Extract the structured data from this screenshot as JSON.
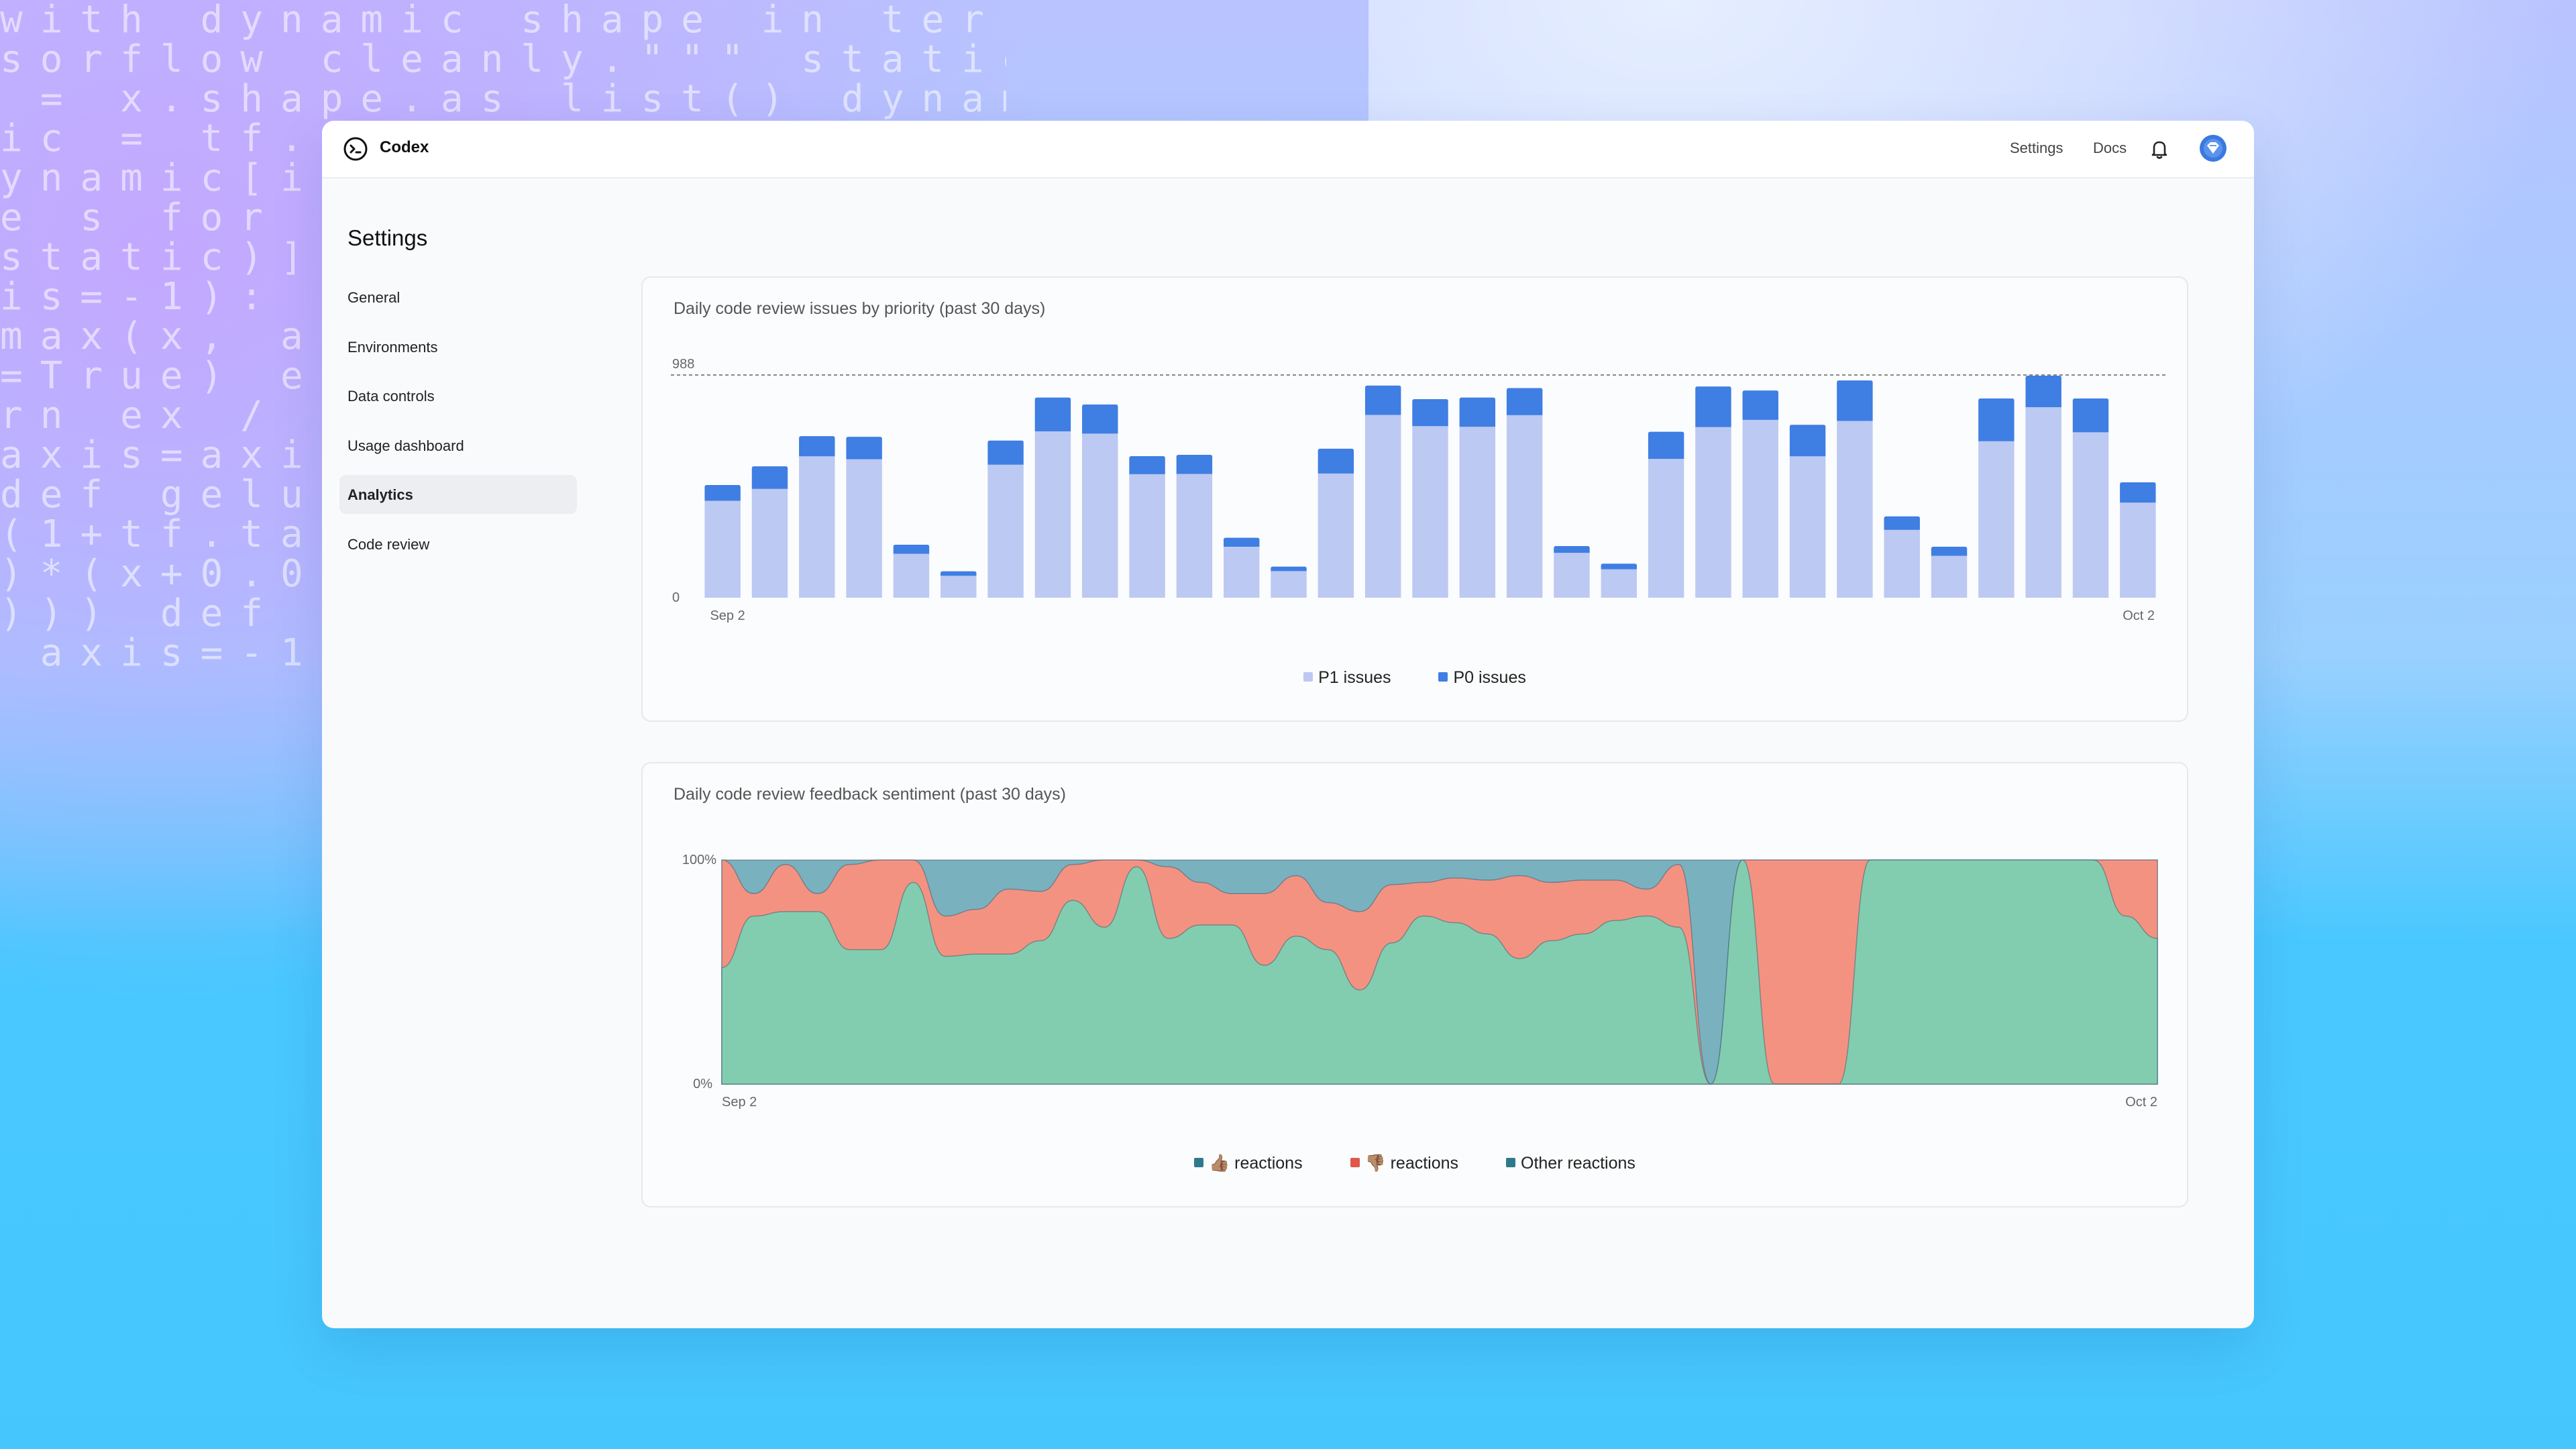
{
  "background": {
    "code_lines": [
      "with dynamic shape in ter",
      "sorflow cleanly.\"\"\" static",
      " = x.shape.as list() dynam",
      "ic = tf.",
      "ynamic[i",
      "e s for",
      "static)]",
      "is=-1):",
      "max(x, a",
      "=True) e",
      "rn ex /",
      "axis=axi",
      "def gelu",
      "(1+tf.ta",
      ")*(x+0.0",
      "))) def",
      " axis=-1"
    ]
  },
  "app": {
    "title": "Codex",
    "logo_icon": "codex-terminal-icon"
  },
  "topbar": {
    "settings_label": "Settings",
    "docs_label": "Docs",
    "bell_icon": "bell-icon",
    "avatar_icon": "avatar-icon"
  },
  "sidebar": {
    "title": "Settings",
    "items": [
      {
        "label": "General",
        "active": false
      },
      {
        "label": "Environments",
        "active": false
      },
      {
        "label": "Data controls",
        "active": false
      },
      {
        "label": "Usage dashboard",
        "active": false
      },
      {
        "label": "Analytics",
        "active": true
      },
      {
        "label": "Code review",
        "active": false
      }
    ]
  },
  "chart_data": [
    {
      "type": "bar",
      "stacked": true,
      "title": "Daily code review issues by priority (past 30 days)",
      "y_ticks": [
        0,
        988
      ],
      "reference_line": 988,
      "x_tick_labels": [
        "Sep 2",
        "Oct 2"
      ],
      "legend_position": "bottom-center",
      "series": [
        {
          "name": "P1 issues",
          "color": "#bcc9f2",
          "values": [
            430,
            483,
            627,
            614,
            195,
            97,
            590,
            738,
            728,
            548,
            549,
            226,
            118,
            551,
            811,
            761,
            758,
            810,
            199,
            126,
            616,
            757,
            789,
            627,
            784,
            301,
            186,
            694,
            845,
            734,
            422
          ]
        },
        {
          "name": "P0 issues",
          "color": "#3f7ee3",
          "values": [
            70,
            100,
            90,
            100,
            40,
            20,
            107,
            150,
            129,
            80,
            85,
            40,
            20,
            110,
            130,
            120,
            130,
            120,
            30,
            25,
            120,
            180,
            130,
            140,
            180,
            60,
            40,
            190,
            140,
            150,
            90
          ]
        }
      ]
    },
    {
      "type": "area",
      "stacked": true,
      "normalized": true,
      "title": "Daily code review feedback sentiment (past 30 days)",
      "y_ticks": [
        "0%",
        "100%"
      ],
      "ylim": [
        0,
        100
      ],
      "x_tick_labels": [
        "Sep 2",
        "Oct 2"
      ],
      "legend_position": "bottom-center",
      "series": [
        {
          "name": "👍🏽 reactions",
          "color": "#82cdb0",
          "values": [
            52,
            75,
            77,
            77,
            60,
            60,
            90,
            57,
            58,
            58,
            64,
            82,
            70,
            97,
            65,
            71,
            71,
            53,
            66,
            60,
            42,
            63,
            75,
            72,
            67,
            56,
            64,
            67,
            73,
            75,
            70,
            0,
            100,
            0,
            0,
            0,
            100,
            100,
            100,
            100,
            100,
            100,
            100,
            100,
            75,
            65
          ]
        },
        {
          "name": "👎🏽 reactions",
          "color": "#f49282",
          "values": [
            48,
            10,
            21,
            8,
            38,
            40,
            10,
            18,
            20,
            29,
            22,
            16,
            30,
            3,
            32,
            19,
            14,
            32,
            27,
            21,
            35,
            26,
            15,
            20,
            24,
            37,
            26,
            24,
            18,
            12,
            28,
            0,
            0,
            100,
            100,
            100,
            0,
            0,
            0,
            0,
            0,
            0,
            0,
            0,
            25,
            35
          ]
        },
        {
          "name": "Other reactions",
          "color": "#7ab1bf",
          "values": [
            0,
            15,
            2,
            15,
            2,
            0,
            0,
            25,
            22,
            13,
            14,
            2,
            0,
            0,
            3,
            10,
            15,
            15,
            7,
            19,
            23,
            11,
            10,
            8,
            9,
            7,
            10,
            9,
            9,
            13,
            2,
            100,
            0,
            0,
            0,
            0,
            0,
            0,
            0,
            0,
            0,
            0,
            0,
            0,
            0,
            0
          ]
        }
      ]
    }
  ]
}
